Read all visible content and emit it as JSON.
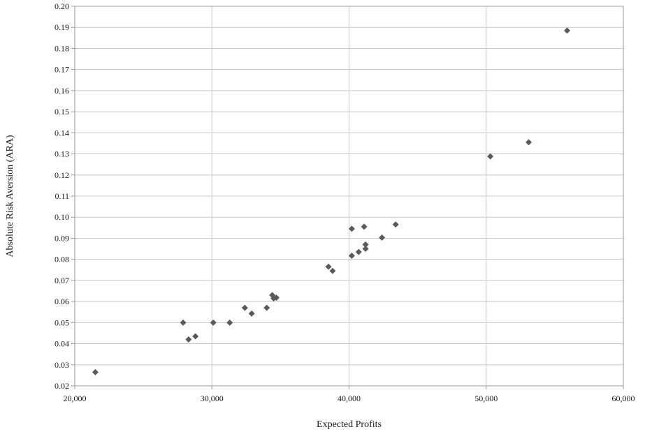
{
  "chart_data": {
    "type": "scatter",
    "xlabel": "Expected Profits",
    "ylabel": "Absolute Risk Aversion (ARA)",
    "xlim": [
      20000,
      60000
    ],
    "ylim": [
      0.02,
      0.2
    ],
    "x_ticks": [
      "20,000",
      "30,000",
      "40,000",
      "50,000",
      "60,000"
    ],
    "y_ticks": [
      "0.02",
      "0.03",
      "0.04",
      "0.05",
      "0.06",
      "0.07",
      "0.08",
      "0.09",
      "0.10",
      "0.11",
      "0.12",
      "0.13",
      "0.14",
      "0.15",
      "0.16",
      "0.17",
      "0.18",
      "0.19",
      "0.20"
    ],
    "grid": true,
    "marker": "diamond",
    "marker_color": "#5a5a5a",
    "grid_color": "#c8c8c8",
    "series": [
      {
        "points": [
          [
            21500,
            0.0265
          ],
          [
            27900,
            0.05
          ],
          [
            28300,
            0.042
          ],
          [
            28800,
            0.0435
          ],
          [
            30100,
            0.05
          ],
          [
            31300,
            0.05
          ],
          [
            32400,
            0.057
          ],
          [
            32900,
            0.0543
          ],
          [
            34000,
            0.057
          ],
          [
            34400,
            0.063
          ],
          [
            34500,
            0.0615
          ],
          [
            34700,
            0.0618
          ],
          [
            38500,
            0.0765
          ],
          [
            38800,
            0.0745
          ],
          [
            40200,
            0.0945
          ],
          [
            40200,
            0.0817
          ],
          [
            40700,
            0.0835
          ],
          [
            41100,
            0.0955
          ],
          [
            41200,
            0.085
          ],
          [
            41200,
            0.087
          ],
          [
            42400,
            0.0903
          ],
          [
            43400,
            0.0965
          ],
          [
            50300,
            0.1288
          ],
          [
            53100,
            0.1355
          ],
          [
            55900,
            0.1885
          ]
        ]
      }
    ]
  }
}
